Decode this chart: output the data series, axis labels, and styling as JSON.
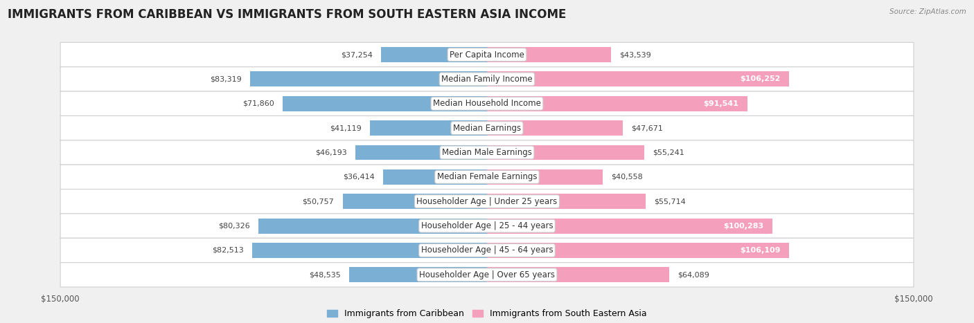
{
  "title": "IMMIGRANTS FROM CARIBBEAN VS IMMIGRANTS FROM SOUTH EASTERN ASIA INCOME",
  "source": "Source: ZipAtlas.com",
  "categories": [
    "Per Capita Income",
    "Median Family Income",
    "Median Household Income",
    "Median Earnings",
    "Median Male Earnings",
    "Median Female Earnings",
    "Householder Age | Under 25 years",
    "Householder Age | 25 - 44 years",
    "Householder Age | 45 - 64 years",
    "Householder Age | Over 65 years"
  ],
  "caribbean_values": [
    37254,
    83319,
    71860,
    41119,
    46193,
    36414,
    50757,
    80326,
    82513,
    48535
  ],
  "sea_values": [
    43539,
    106252,
    91541,
    47671,
    55241,
    40558,
    55714,
    100283,
    106109,
    64089
  ],
  "caribbean_color": "#7bafd4",
  "sea_color": "#f4a0bc",
  "caribbean_label": "Immigrants from Caribbean",
  "sea_label": "Immigrants from South Eastern Asia",
  "max_value": 150000,
  "background_color": "#f0f0f0",
  "row_bg_color": "#ffffff",
  "row_border_color": "#d0d0d0",
  "title_fontsize": 12,
  "label_fontsize": 8.5,
  "value_fontsize": 8,
  "legend_fontsize": 9,
  "inside_label_threshold": 80000,
  "sea_inside_label_threshold": 85000
}
